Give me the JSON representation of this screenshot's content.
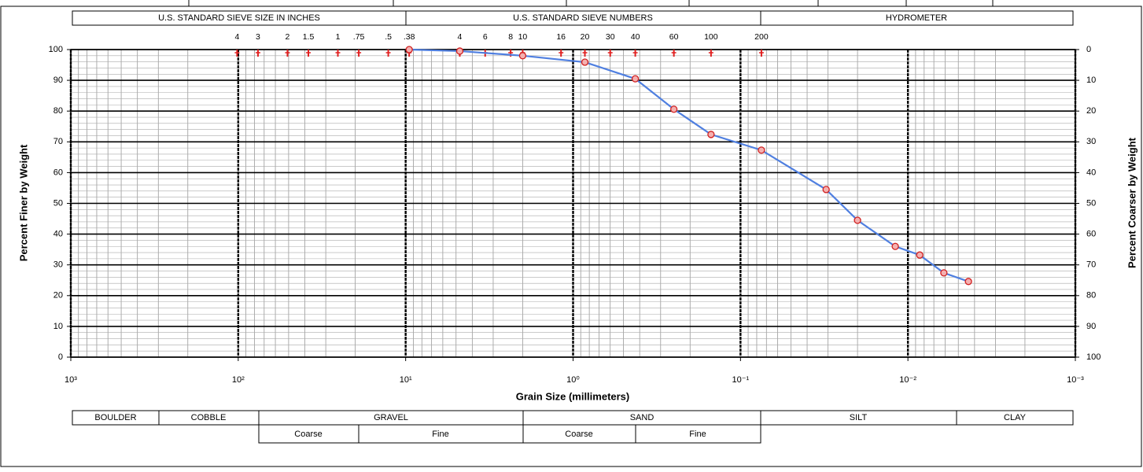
{
  "chart_data": {
    "type": "line",
    "xlabel": "Grain Size (millimeters)",
    "ylabel": "Percent Finer by Weight",
    "y2label": "Percent Coarser by Weight",
    "x": [
      9.525,
      4.75,
      2.0,
      0.85,
      0.425,
      0.25,
      0.15,
      0.075,
      0.0308,
      0.02,
      0.0119,
      0.0085,
      0.0061,
      0.00435
    ],
    "values": [
      100,
      99.5,
      98,
      95.9,
      90.5,
      80.6,
      72.4,
      67.3,
      54.5,
      44.5,
      36,
      33.2,
      27.4,
      24.6
    ],
    "color": "#4f7fe0",
    "marker_color": "#d02020",
    "xscale": "log",
    "xlim": [
      1000,
      0.001
    ],
    "xticks": [
      {
        "value": 1000,
        "label": "10³"
      },
      {
        "value": 100,
        "label": "10²"
      },
      {
        "value": 10,
        "label": "10¹"
      },
      {
        "value": 1,
        "label": "10⁰"
      },
      {
        "value": 0.1,
        "label": "10⁻¹"
      },
      {
        "value": 0.01,
        "label": "10⁻²"
      },
      {
        "value": 0.001,
        "label": "10⁻³"
      }
    ],
    "ylim": [
      0,
      100
    ],
    "yticks": [
      0,
      10,
      20,
      30,
      40,
      50,
      60,
      70,
      80,
      90,
      100
    ],
    "y2lim": [
      100,
      0
    ],
    "y2ticks": [
      0,
      10,
      20,
      30,
      40,
      50,
      60,
      70,
      80,
      90,
      100
    ],
    "grid": true,
    "header_bands": [
      "U.S. STANDARD SIEVE SIZE IN INCHES",
      "U.S. STANDARD SIEVE NUMBERS",
      "HYDROMETER"
    ],
    "sieves": [
      {
        "label": "4",
        "mm": 101.6
      },
      {
        "label": "3",
        "mm": 76.2
      },
      {
        "label": "2",
        "mm": 50.8
      },
      {
        "label": "1.5",
        "mm": 38.1
      },
      {
        "label": "1",
        "mm": 25.4
      },
      {
        "label": ".75",
        "mm": 19.05
      },
      {
        "label": ".5",
        "mm": 12.7
      },
      {
        "label": ".38",
        "mm": 9.525
      },
      {
        "label": "4",
        "mm": 4.75
      },
      {
        "label": "6",
        "mm": 3.35
      },
      {
        "label": "8",
        "mm": 2.36
      },
      {
        "label": "10",
        "mm": 2.0
      },
      {
        "label": "16",
        "mm": 1.18
      },
      {
        "label": "20",
        "mm": 0.85
      },
      {
        "label": "30",
        "mm": 0.6
      },
      {
        "label": "40",
        "mm": 0.425
      },
      {
        "label": "60",
        "mm": 0.25
      },
      {
        "label": "100",
        "mm": 0.15
      },
      {
        "label": "200",
        "mm": 0.075
      }
    ],
    "soil_classes": [
      "BOULDER",
      "COBBLE",
      "GRAVEL",
      "SAND",
      "SILT",
      "CLAY"
    ],
    "subclasses": [
      "Coarse",
      "Fine",
      "Coarse",
      "Fine"
    ]
  }
}
